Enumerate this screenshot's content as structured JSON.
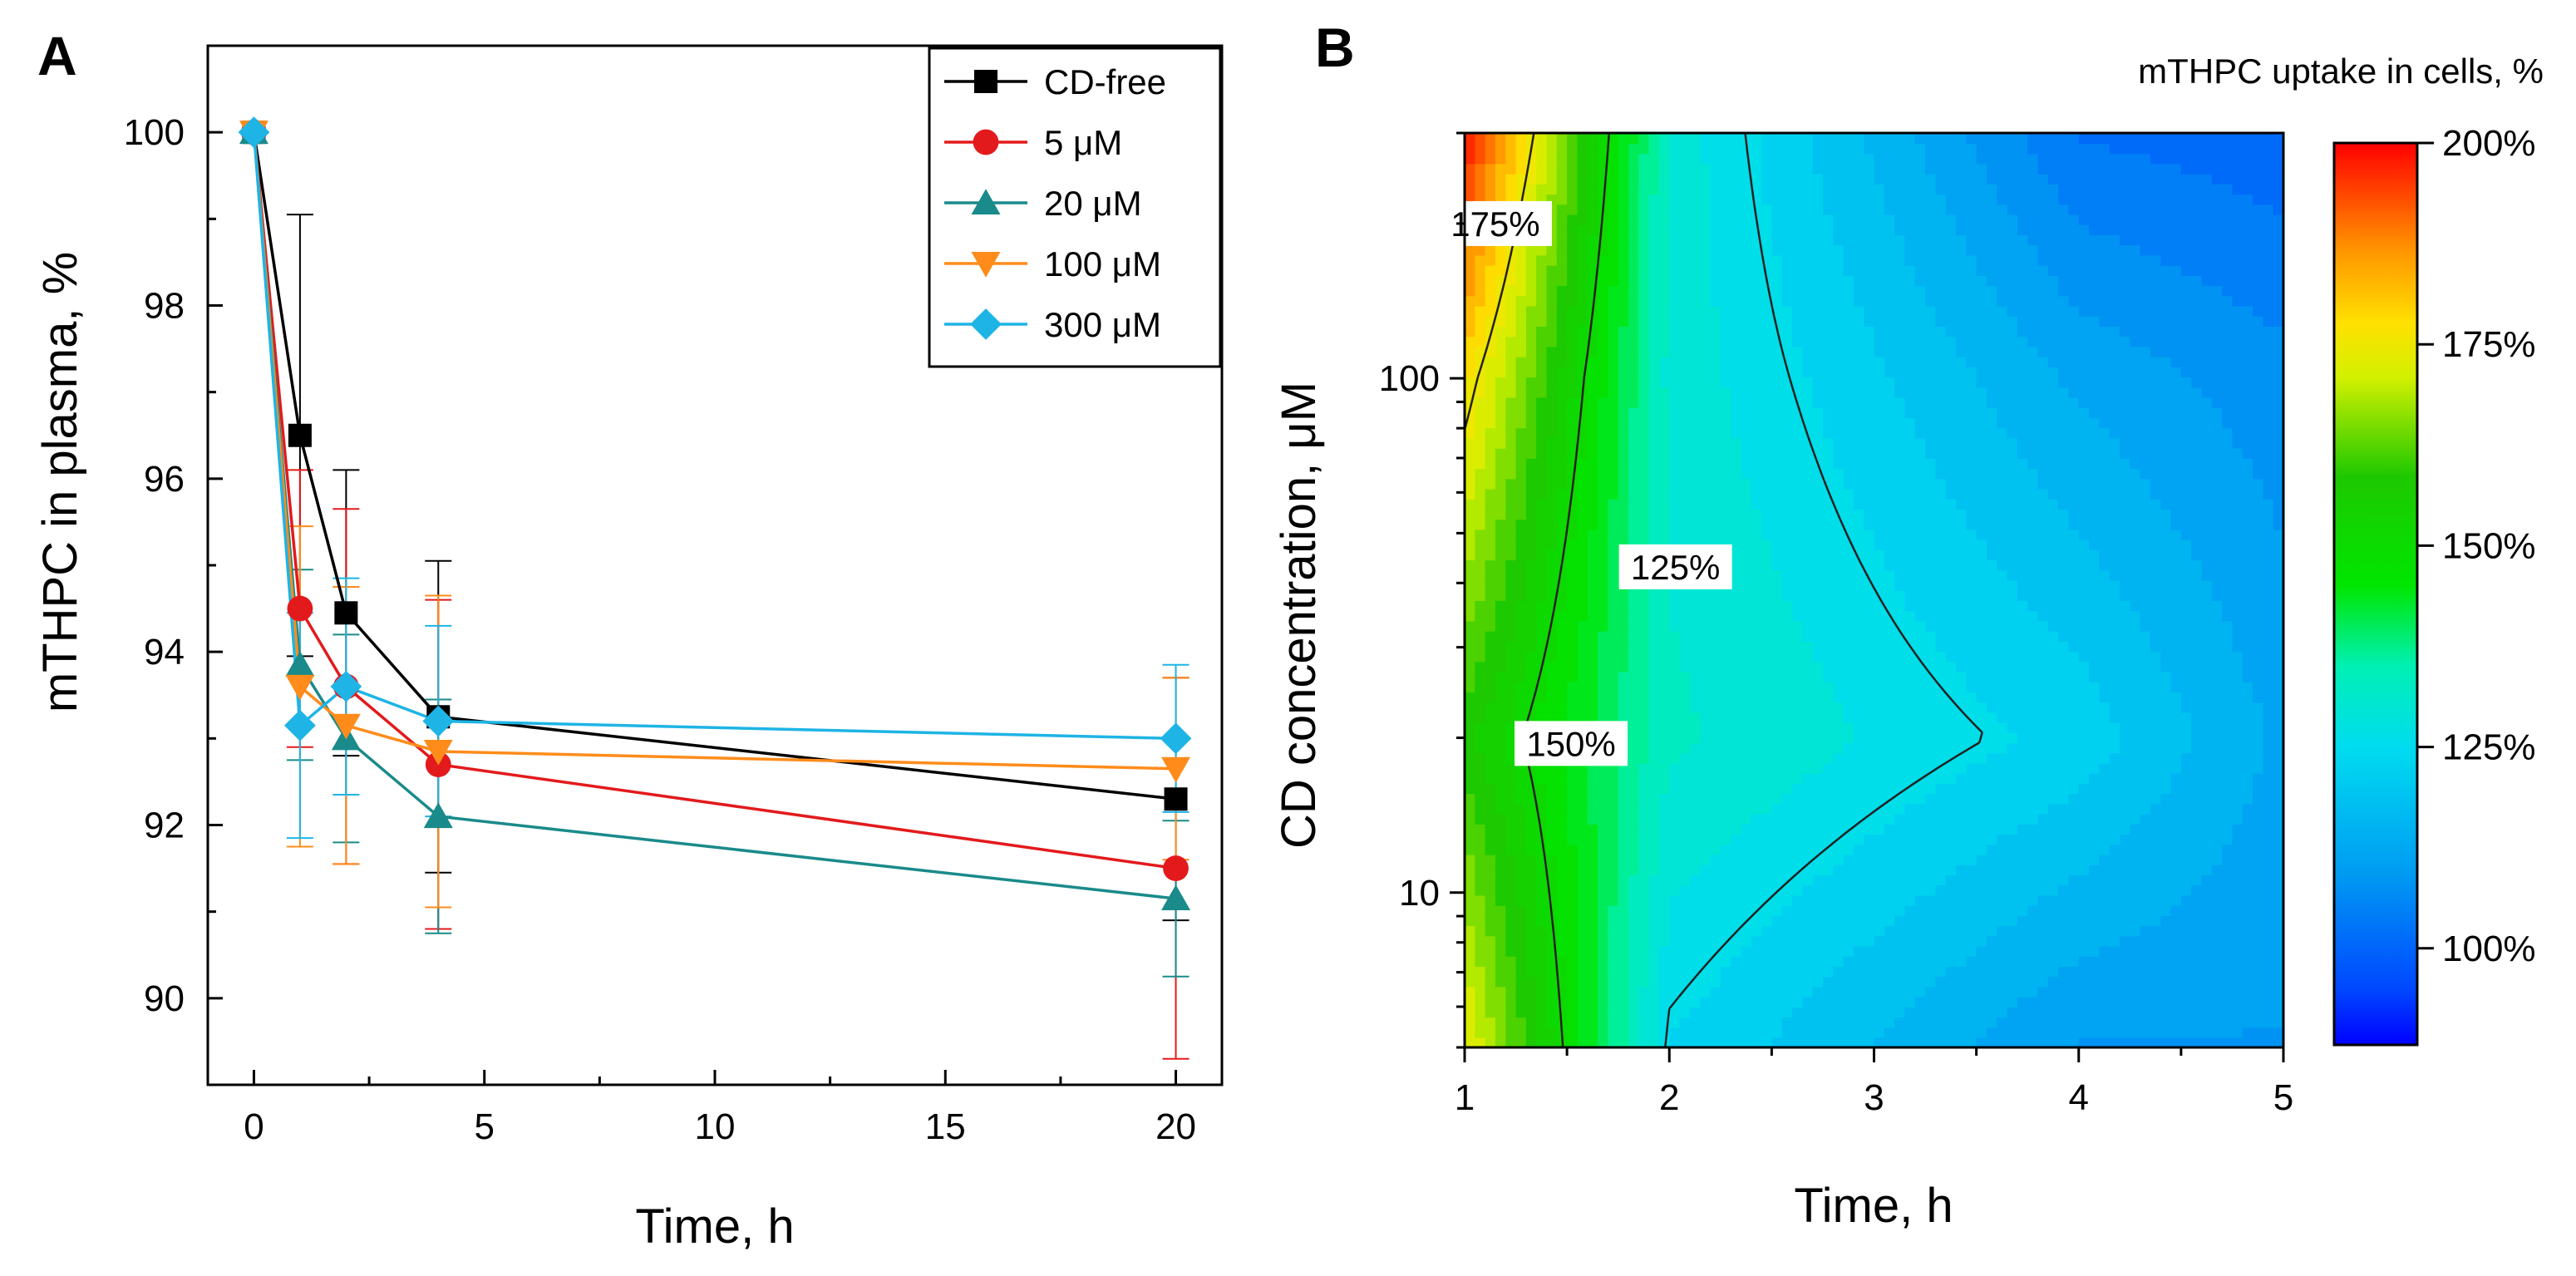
{
  "chart_data": [
    {
      "panel": "A",
      "type": "line",
      "title": "",
      "xlabel": "Time, h",
      "ylabel": "mTHPC in plasma, %",
      "xlim": [
        -1,
        21
      ],
      "ylim": [
        89,
        101
      ],
      "xticks": [
        0,
        5,
        10,
        15,
        20
      ],
      "yticks": [
        90,
        92,
        94,
        96,
        98,
        100
      ],
      "x": [
        0,
        1,
        2,
        4,
        20
      ],
      "grid": false,
      "legend_position": "top-right",
      "series": [
        {
          "name": "CD-free",
          "color": "#000000",
          "marker": "square",
          "values": [
            100,
            96.5,
            94.45,
            93.25,
            92.3
          ],
          "errors": [
            0,
            2.55,
            1.65,
            1.8,
            1.4
          ]
        },
        {
          "name": "5 μM",
          "color": "#e31a1c",
          "marker": "circle",
          "values": [
            100,
            94.5,
            93.6,
            92.7,
            91.5
          ],
          "errors": [
            0,
            1.6,
            2.05,
            1.9,
            2.2
          ]
        },
        {
          "name": "20 μM",
          "color": "#1a8a8a",
          "marker": "triangle-up",
          "values": [
            100,
            93.85,
            93.0,
            92.1,
            91.15
          ],
          "errors": [
            0,
            1.1,
            1.2,
            1.35,
            0.9
          ]
        },
        {
          "name": "100 μM",
          "color": "#ff8c1a",
          "marker": "triangle-down",
          "values": [
            100,
            93.6,
            93.15,
            92.85,
            92.65
          ],
          "errors": [
            0,
            1.85,
            1.6,
            1.8,
            1.05
          ]
        },
        {
          "name": "300 μM",
          "color": "#1eb4e6",
          "marker": "diamond",
          "values": [
            100,
            93.15,
            93.6,
            93.2,
            93.0
          ],
          "errors": [
            0,
            1.3,
            1.25,
            1.1,
            0.85
          ]
        }
      ]
    },
    {
      "panel": "B",
      "type": "heatmap",
      "subtype": "contour",
      "title": "mTHPC uptake in cells, %",
      "xlabel": "Time, h",
      "ylabel": "CD concentration, μM",
      "xlim": [
        1,
        5
      ],
      "ylim": [
        5,
        300
      ],
      "yscale": "log",
      "xticks": [
        1,
        2,
        3,
        4,
        5
      ],
      "yticks": [
        10,
        100
      ],
      "x": [
        1,
        2,
        4,
        5
      ],
      "y": [
        5,
        20,
        100,
        300
      ],
      "z": [
        [
          174,
          124,
          110,
          110
        ],
        [
          157,
          132,
          123,
          113
        ],
        [
          178,
          130,
          113,
          108
        ],
        [
          198,
          130,
          103,
          101
        ]
      ],
      "colorbar": {
        "min": 88,
        "max": 200,
        "ticks": [
          100,
          125,
          150,
          175,
          200
        ],
        "tick_suffix": "%"
      },
      "contour_labels": [
        {
          "text": "175%",
          "level": 175
        },
        {
          "text": "150%",
          "level": 150
        },
        {
          "text": "125%",
          "level": 125
        }
      ]
    }
  ]
}
